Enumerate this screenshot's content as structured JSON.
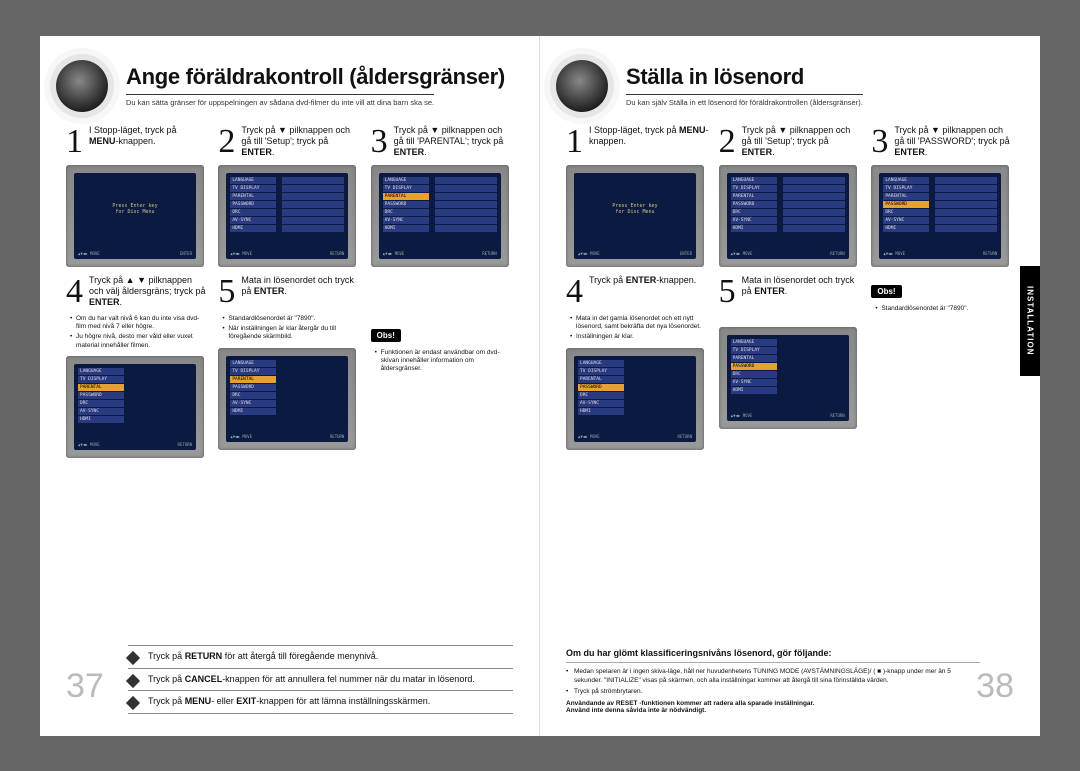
{
  "left": {
    "title": "Ange föräldrakontroll (åldersgränser)",
    "subtitle": "Du kan sätta gränser för uppspelningen av sådana dvd-filmer du inte vill att dina barn ska se.",
    "steps": {
      "s1": {
        "num": "1",
        "text": "I Stopp-läget, tryck på <b>MENU</b>-knappen."
      },
      "s2": {
        "num": "2",
        "text": "Tryck på ▼ pilknappen och gå till 'Setup'; tryck på <b>ENTER</b>."
      },
      "s3": {
        "num": "3",
        "text": "Tryck på ▼ pilknappen och gå till 'PARENTAL'; tryck på <b>ENTER</b>."
      },
      "s4": {
        "num": "4",
        "text": "Tryck på ▲ ▼ pilknappen och välj åldersgräns; tryck på <b>ENTER</b>."
      },
      "s5": {
        "num": "5",
        "text": "Mata in lösenordet och tryck på <b>ENTER</b>."
      }
    },
    "bullets4": [
      "Om du har valt nivå 6 kan du inte visa dvd-film med nivå 7 eller högre.",
      "Ju högre nivå, desto mer våld eller vuxet material innehåller filmen."
    ],
    "bullets5": [
      "Standardlösenordet är \"7890\".",
      "När inställningen är klar återgår du till föregående skärmbild."
    ],
    "obs_label": "Obs!",
    "obs_text": "Funktionen är endast användbar om dvd-skivan innehåller information om åldersgränser.",
    "footer": {
      "r1": "Tryck på <b>RETURN</b> för att återgå till föregående menynivå.",
      "r2": "Tryck på <b>CANCEL</b>-knappen för att annullera fel nummer när du matar in lösenord.",
      "r3": "Tryck på <b>MENU</b>- eller <b>EXIT</b>-knappen för att lämna inställningsskärmen."
    },
    "page_num": "37",
    "tv_menus": {
      "setup_items": [
        "LANGUAGE",
        "TV DISPLAY",
        "PARENTAL",
        "PASSWORD",
        "DRC",
        "AV-SYNC",
        "HDMI"
      ],
      "center1a": "Press Enter key",
      "center1b": "for Disc Menu",
      "hint_move": "▲▼◀▶ MOVE",
      "hint_enter": "ENTER",
      "hint_return": "RETURN"
    }
  },
  "right": {
    "title": "Ställa in lösenord",
    "subtitle": "Du kan själv Ställa in ett lösenord för föräldrakontrollen (åldersgränser).",
    "steps": {
      "s1": {
        "num": "1",
        "text": "I Stopp-läget, tryck på <b>MENU</b>-knappen."
      },
      "s2": {
        "num": "2",
        "text": "Tryck på ▼ pilknappen och gå till 'Setup'; tryck på <b>ENTER</b>."
      },
      "s3": {
        "num": "3",
        "text": "Tryck på ▼ pilknappen och gå till 'PASSWORD'; tryck på <b>ENTER</b>."
      },
      "s4": {
        "num": "4",
        "text": "Tryck på <b>ENTER</b>-knappen."
      },
      "s5": {
        "num": "5",
        "text": "Mata in lösenordet och tryck på <b>ENTER</b>."
      }
    },
    "bullets4": [
      "Mata in det gamla lösenordet och ett nytt lösenord, samt bekräfta det nya lösenordet.",
      "Inställningen är klar."
    ],
    "bullets5": [
      "Standardlösenordet är \"7890\"."
    ],
    "obs_label": "Obs!",
    "footer": {
      "heading": "Om du har glömt klassificeringsnivåns lösenord, gör följande:",
      "items": [
        "Medan spelaren är i ingen skiva-läge, håll ner huvudenhetens TUNING MODE (AVSTÄMNINGSLÄGE)/ ( ■ )-knapp under mer än 5 sekunder. \"INITIALIZE\" visas på skärmen, och alla inställningar kommer att återgå till sina förinställda värden.",
        "Tryck på strömbrytaren."
      ],
      "warn1": "Användande av RESET -funktionen kommer att radera alla sparade inställningar.",
      "warn2": "Använd inte denna såvida inte är nödvändigt."
    },
    "page_num": "38",
    "side_tab": "INSTALLATION"
  },
  "colors": {
    "tv_bezel": "#888888",
    "tv_screen": "#0a1a40",
    "menu_item": "#2a3a80",
    "menu_sel": "#e8a030",
    "page_num": "#bbbbbb"
  }
}
